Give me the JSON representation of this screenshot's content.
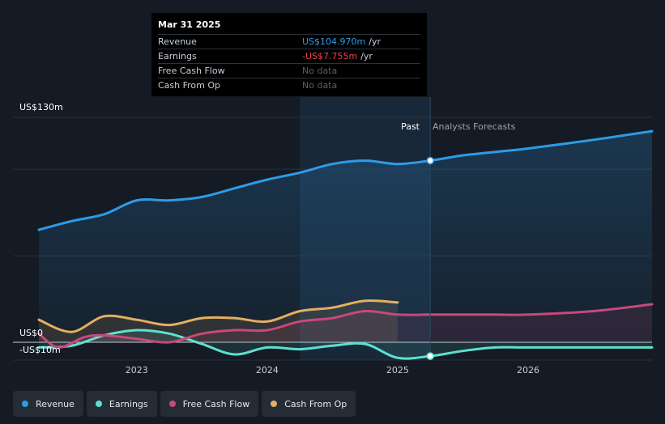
{
  "tooltip": {
    "date": "Mar 31 2025",
    "rows": [
      {
        "name": "Revenue",
        "value": "US$104.970m",
        "unit": "/yr"
      },
      {
        "name": "Earnings",
        "value": "-US$7.755m",
        "unit": "/yr"
      },
      {
        "name": "Free Cash Flow",
        "value": "No data",
        "unit": ""
      },
      {
        "name": "Cash From Op",
        "value": "No data",
        "unit": ""
      }
    ]
  },
  "labels": {
    "y_top": "US$130m",
    "y_zero": "US$0",
    "y_neg": "-US$10m",
    "past": "Past",
    "forecast": "Analysts Forecasts"
  },
  "legend": [
    {
      "label": "Revenue",
      "color": "#2e9be8"
    },
    {
      "label": "Earnings",
      "color": "#5ee0d0"
    },
    {
      "label": "Free Cash Flow",
      "color": "#c8487c"
    },
    {
      "label": "Cash From Op",
      "color": "#e5ae62"
    }
  ],
  "chart_data": {
    "type": "line",
    "title": "",
    "xlabel": "",
    "ylabel": "",
    "unit": "US$m",
    "x_ticks": [
      "2023",
      "2024",
      "2025",
      "2026"
    ],
    "x_tick_values": [
      2023,
      2024,
      2025,
      2026
    ],
    "xlim": [
      2022.25,
      2026.95
    ],
    "ylim": [
      -10,
      130
    ],
    "gridlines": [
      0,
      50,
      100,
      130
    ],
    "past_end": 2025.25,
    "highlight_start": 2024.25,
    "series": [
      {
        "name": "Revenue",
        "color": "#2e9be8",
        "fill": true,
        "points": [
          [
            2022.25,
            65
          ],
          [
            2022.5,
            70
          ],
          [
            2022.75,
            74
          ],
          [
            2023.0,
            82
          ],
          [
            2023.25,
            82
          ],
          [
            2023.5,
            84
          ],
          [
            2023.75,
            89
          ],
          [
            2024.0,
            94
          ],
          [
            2024.25,
            98
          ],
          [
            2024.5,
            103
          ],
          [
            2024.75,
            105
          ],
          [
            2025.0,
            103
          ],
          [
            2025.25,
            105
          ],
          [
            2025.5,
            108
          ],
          [
            2025.75,
            110
          ],
          [
            2026.0,
            112
          ],
          [
            2026.5,
            117
          ],
          [
            2026.95,
            122
          ]
        ]
      },
      {
        "name": "Earnings",
        "color": "#5ee0d0",
        "fill": true,
        "points": [
          [
            2022.25,
            -3
          ],
          [
            2022.5,
            -2
          ],
          [
            2022.75,
            4
          ],
          [
            2023.0,
            7
          ],
          [
            2023.25,
            5
          ],
          [
            2023.5,
            -1
          ],
          [
            2023.75,
            -7
          ],
          [
            2024.0,
            -3
          ],
          [
            2024.25,
            -4
          ],
          [
            2024.5,
            -2
          ],
          [
            2024.75,
            -1
          ],
          [
            2025.0,
            -9
          ],
          [
            2025.25,
            -8
          ],
          [
            2025.5,
            -5
          ],
          [
            2025.75,
            -3
          ],
          [
            2026.0,
            -3
          ],
          [
            2026.5,
            -3
          ],
          [
            2026.95,
            -3
          ]
        ]
      },
      {
        "name": "Free Cash Flow",
        "color": "#c8487c",
        "fill": true,
        "points": [
          [
            2022.25,
            5
          ],
          [
            2022.4,
            -3
          ],
          [
            2022.6,
            3
          ],
          [
            2022.75,
            4
          ],
          [
            2023.0,
            2
          ],
          [
            2023.25,
            0
          ],
          [
            2023.5,
            5
          ],
          [
            2023.75,
            7
          ],
          [
            2024.0,
            7
          ],
          [
            2024.25,
            12
          ],
          [
            2024.5,
            14
          ],
          [
            2024.75,
            18
          ],
          [
            2025.0,
            16
          ],
          [
            2025.25,
            16
          ],
          [
            2025.5,
            16
          ],
          [
            2025.75,
            16
          ],
          [
            2026.0,
            16
          ],
          [
            2026.5,
            18
          ],
          [
            2026.95,
            22
          ]
        ]
      },
      {
        "name": "Cash From Op",
        "color": "#e5ae62",
        "fill": true,
        "points": [
          [
            2022.25,
            13
          ],
          [
            2022.5,
            6
          ],
          [
            2022.75,
            15
          ],
          [
            2023.0,
            13
          ],
          [
            2023.25,
            10
          ],
          [
            2023.5,
            14
          ],
          [
            2023.75,
            14
          ],
          [
            2024.0,
            12
          ],
          [
            2024.25,
            18
          ],
          [
            2024.5,
            20
          ],
          [
            2024.75,
            24
          ],
          [
            2025.0,
            23
          ]
        ]
      }
    ],
    "markers": [
      {
        "series": "Revenue",
        "x": 2025.25,
        "y": 105
      },
      {
        "series": "Earnings",
        "x": 2025.25,
        "y": -8
      }
    ]
  }
}
